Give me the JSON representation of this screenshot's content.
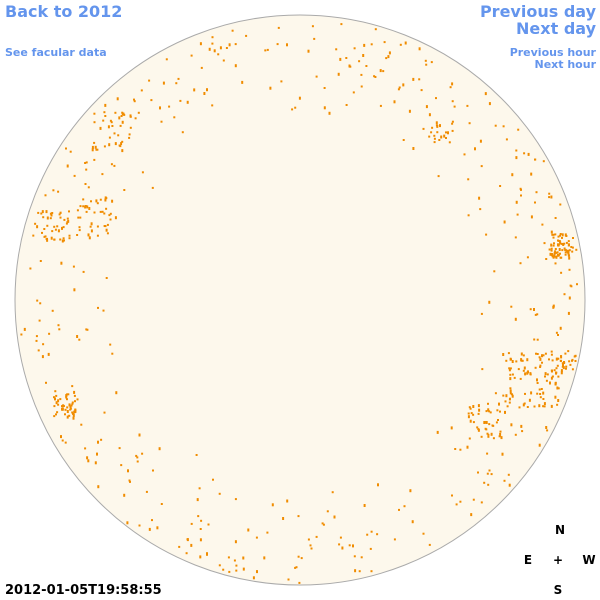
{
  "nav": {
    "back": "Back to 2012",
    "facular": "See facular data",
    "previous_day": "Previous day",
    "next_day": "Next day",
    "previous_hour": "Previous hour",
    "next_hour": "Next hour"
  },
  "timestamp": "2012-01-05T19:58:55",
  "compass": {
    "north": "N",
    "east": "E",
    "center": "+",
    "west": "W",
    "south": "S"
  }
}
